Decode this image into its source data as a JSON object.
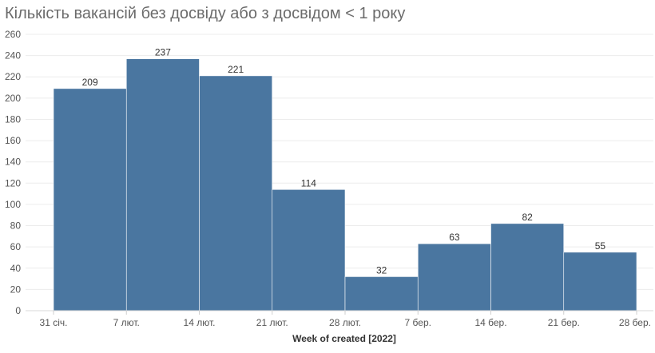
{
  "title": "Кількість вакансій без досвіду або з досвідом < 1 року",
  "chart_data": {
    "type": "bar",
    "title": "Кількість вакансій без досвіду або з досвідом < 1 року",
    "xlabel": "Week of created [2022]",
    "ylabel": "",
    "ylim": [
      0,
      260
    ],
    "yticks": [
      0,
      20,
      40,
      60,
      80,
      100,
      120,
      140,
      160,
      180,
      200,
      220,
      240,
      260
    ],
    "xticks": [
      "31 січ.",
      "7 лют.",
      "14 лют.",
      "21 лют.",
      "28 лют.",
      "7 бер.",
      "14 бер.",
      "21 бер.",
      "28 бер."
    ],
    "values": [
      209,
      237,
      221,
      114,
      32,
      63,
      82,
      55
    ],
    "bar_color": "#4a76a0",
    "grid": true
  }
}
